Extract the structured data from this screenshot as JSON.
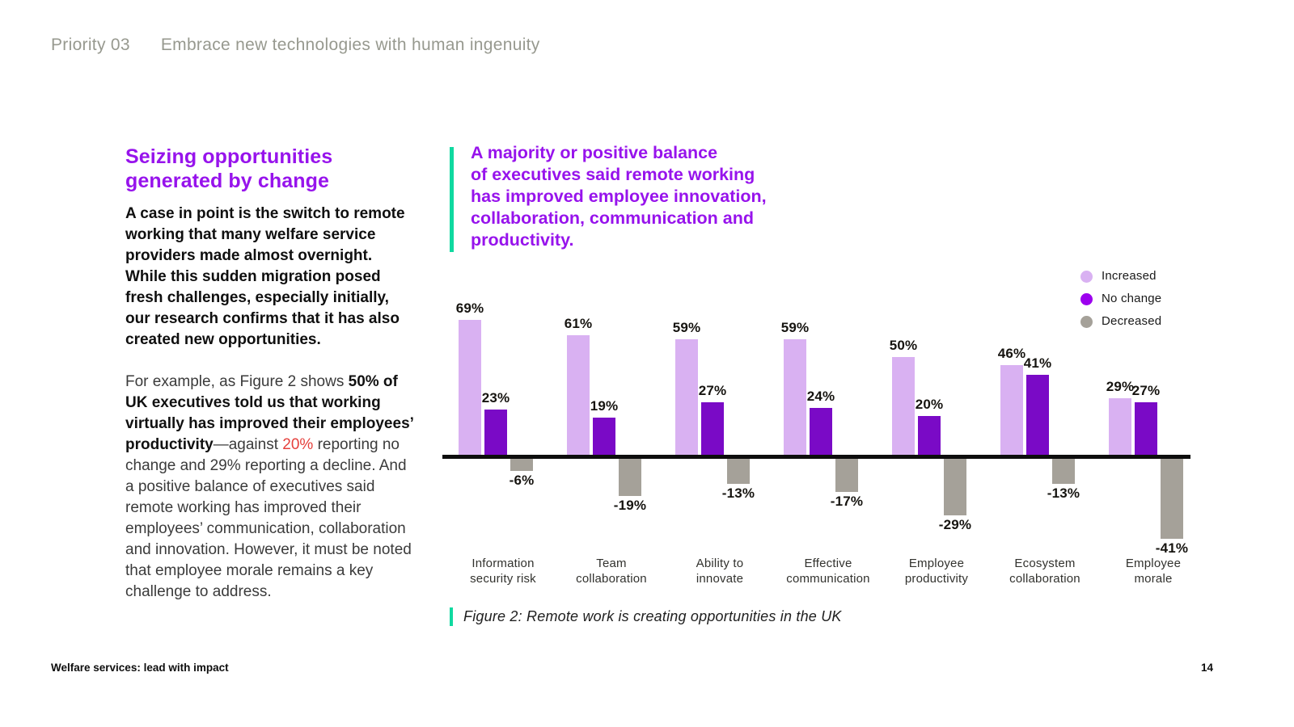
{
  "header": {
    "priority": "Priority 03",
    "title": "Embrace new technologies with human ingenuity"
  },
  "left_column": {
    "heading": "Seizing opportunities\ngenerated by change",
    "intro_bold": "A case in point is the switch to remote working that many welfare service providers made almost overnight. While this sudden migration posed fresh challenges, especially initially, our research confirms that it has also created new opportunities.",
    "body": {
      "t1": "For example, as Figure 2 shows ",
      "b1": "50% of UK executives told us that working virtually has improved their employees’ productivity",
      "t2": "—against ",
      "red": "20%",
      "t3": " reporting no change and 29% reporting a decline. And a positive balance of executives said remote working has improved their employees’ communication, collaboration and innovation. However, it must be noted that employee morale remains a key challenge to address."
    }
  },
  "callout": {
    "text": "A majority or positive balance\nof executives said remote working\nhas improved employee innovation,\ncollaboration, communication and\nproductivity."
  },
  "figure": {
    "caption": "Figure 2: Remote work is creating opportunities in the UK"
  },
  "footer": {
    "left": "Welfare services: lead with impact",
    "page_number": "14"
  },
  "colors": {
    "accent_green": "#10d9a0",
    "heading_purple": "#9713ec",
    "red_highlight": "#e5403c",
    "header_gray": "#97998f"
  },
  "chart_data": {
    "type": "bar",
    "categories": [
      "Information\nsecurity risk",
      "Team\ncollaboration",
      "Ability to\ninnovate",
      "Effective\ncommunication",
      "Employee\nproductivity",
      "Ecosystem\ncollaboration",
      "Employee\nmorale"
    ],
    "series": [
      {
        "name": "Increased",
        "color": "#d9b1f2",
        "values": [
          69,
          61,
          59,
          59,
          50,
          46,
          29
        ]
      },
      {
        "name": "No change",
        "color": "#7a0ac6",
        "legend_color": "#9c00ee",
        "values": [
          23,
          19,
          27,
          24,
          20,
          41,
          27
        ]
      },
      {
        "name": "Decreased",
        "color": "#a5a199",
        "values": [
          -6,
          -19,
          -13,
          -17,
          -29,
          -13,
          -41
        ]
      }
    ],
    "value_label_format": "percent",
    "legend_position": "top-right",
    "baseline": 0,
    "grid": false
  }
}
